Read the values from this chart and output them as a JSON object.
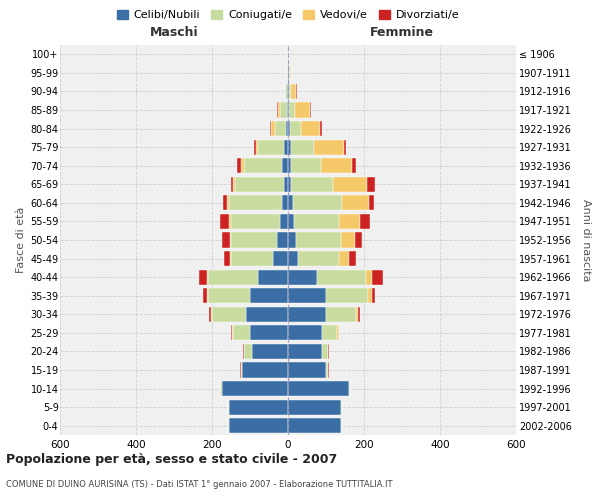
{
  "age_groups": [
    "0-4",
    "5-9",
    "10-14",
    "15-19",
    "20-24",
    "25-29",
    "30-34",
    "35-39",
    "40-44",
    "45-49",
    "50-54",
    "55-59",
    "60-64",
    "65-69",
    "70-74",
    "75-79",
    "80-84",
    "85-89",
    "90-94",
    "95-99",
    "100+"
  ],
  "birth_years": [
    "2002-2006",
    "1997-2001",
    "1992-1996",
    "1987-1991",
    "1982-1986",
    "1977-1981",
    "1972-1976",
    "1967-1971",
    "1962-1966",
    "1957-1961",
    "1952-1956",
    "1947-1951",
    "1942-1946",
    "1937-1941",
    "1932-1936",
    "1927-1931",
    "1922-1926",
    "1917-1921",
    "1912-1916",
    "1907-1911",
    "≤ 1906"
  ],
  "males": {
    "celibi": [
      155,
      155,
      175,
      120,
      95,
      100,
      110,
      100,
      80,
      40,
      30,
      20,
      15,
      10,
      15,
      10,
      5,
      2,
      2,
      1,
      1
    ],
    "coniugati": [
      2,
      2,
      3,
      5,
      20,
      45,
      90,
      110,
      130,
      110,
      120,
      130,
      140,
      130,
      100,
      70,
      30,
      20,
      5,
      2,
      1
    ],
    "vedovi": [
      0,
      0,
      0,
      0,
      1,
      2,
      3,
      3,
      3,
      3,
      3,
      5,
      5,
      5,
      8,
      5,
      10,
      5,
      2,
      0,
      0
    ],
    "divorziati": [
      0,
      0,
      0,
      1,
      2,
      2,
      5,
      10,
      20,
      15,
      20,
      25,
      10,
      5,
      10,
      5,
      2,
      2,
      0,
      0,
      0
    ]
  },
  "females": {
    "nubili": [
      140,
      140,
      160,
      100,
      90,
      90,
      100,
      100,
      75,
      25,
      20,
      15,
      12,
      8,
      8,
      8,
      5,
      3,
      2,
      2,
      1
    ],
    "coniugate": [
      2,
      2,
      3,
      5,
      15,
      40,
      80,
      110,
      130,
      110,
      120,
      120,
      130,
      110,
      80,
      60,
      30,
      15,
      5,
      2,
      1
    ],
    "vedove": [
      0,
      0,
      0,
      1,
      1,
      3,
      5,
      10,
      15,
      25,
      35,
      55,
      70,
      90,
      80,
      80,
      50,
      40,
      15,
      5,
      1
    ],
    "divorziate": [
      0,
      0,
      0,
      1,
      2,
      2,
      5,
      10,
      30,
      20,
      20,
      25,
      15,
      20,
      10,
      5,
      5,
      2,
      2,
      0,
      0
    ]
  },
  "colors": {
    "celibi": "#3a6ea5",
    "coniugati": "#c8dca0",
    "vedovi": "#f5c96a",
    "divorziati": "#cc2222"
  },
  "title": "Popolazione per età, sesso e stato civile - 2007",
  "subtitle": "COMUNE DI DUINO AURISINA (TS) - Dati ISTAT 1° gennaio 2007 - Elaborazione TUTTITALIA.IT",
  "xlabel_left": "Maschi",
  "xlabel_right": "Femmine",
  "ylabel_left": "Fasce di età",
  "ylabel_right": "Anni di nascita",
  "xlim": 600,
  "legend_labels": [
    "Celibi/Nubili",
    "Coniugati/e",
    "Vedovi/e",
    "Divorziati/e"
  ],
  "background_color": "#ffffff",
  "grid_color": "#cccccc"
}
